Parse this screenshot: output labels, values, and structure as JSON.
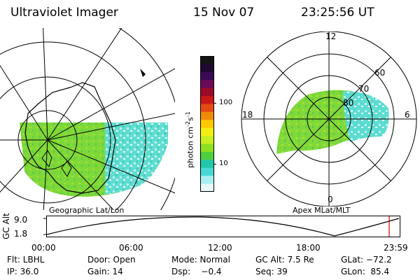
{
  "header": {
    "instrument": "Ultraviolet Imager",
    "date": "15 Nov 07",
    "time": "23:25:56 UT"
  },
  "left_panel": {
    "caption": "Geographic Lat/Lon"
  },
  "right_panel": {
    "caption": "Apex MLat/MLT",
    "mlt_labels": {
      "top": "12",
      "right": "6",
      "bottom": "0",
      "left": "18"
    },
    "mlat_labels": [
      "60",
      "70",
      "80"
    ]
  },
  "colorbar": {
    "unit_label": "photon cm",
    "unit_sup1": "-2",
    "unit_s": "s",
    "unit_sup2": "-1",
    "ticks": [
      "100",
      "10"
    ],
    "colors": [
      "#141414",
      "#1e0a2e",
      "#3a0a55",
      "#6a0a5a",
      "#9a0a28",
      "#c81818",
      "#e64a14",
      "#f08a0a",
      "#ffc800",
      "#f4ee10",
      "#c8ee20",
      "#8ee020",
      "#50d040",
      "#20c8a8",
      "#48d8d8",
      "#a8f0f0",
      "#e8f8fa"
    ]
  },
  "timeline": {
    "y_label": "GC Alt",
    "y_ticks": [
      "9.0",
      "1.8"
    ],
    "x_ticks": [
      "00:00",
      "06:00",
      "12:00",
      "18:00",
      "23:59"
    ],
    "marker_color": "#cc0000"
  },
  "status": {
    "row1": {
      "flt": "Flt: LBHL",
      "door": "Door: Open",
      "mode": "Mode: Normal",
      "gcalt": "GC Alt: 7.5 Re",
      "glat": "GLat: −72.2"
    },
    "row2": {
      "ip": "IP: 36.0",
      "gain": "Gain: 14",
      "dsp": "Dsp:    −0.4",
      "seq": "Seq: 39",
      "glon": "GLon:  85.4"
    }
  }
}
